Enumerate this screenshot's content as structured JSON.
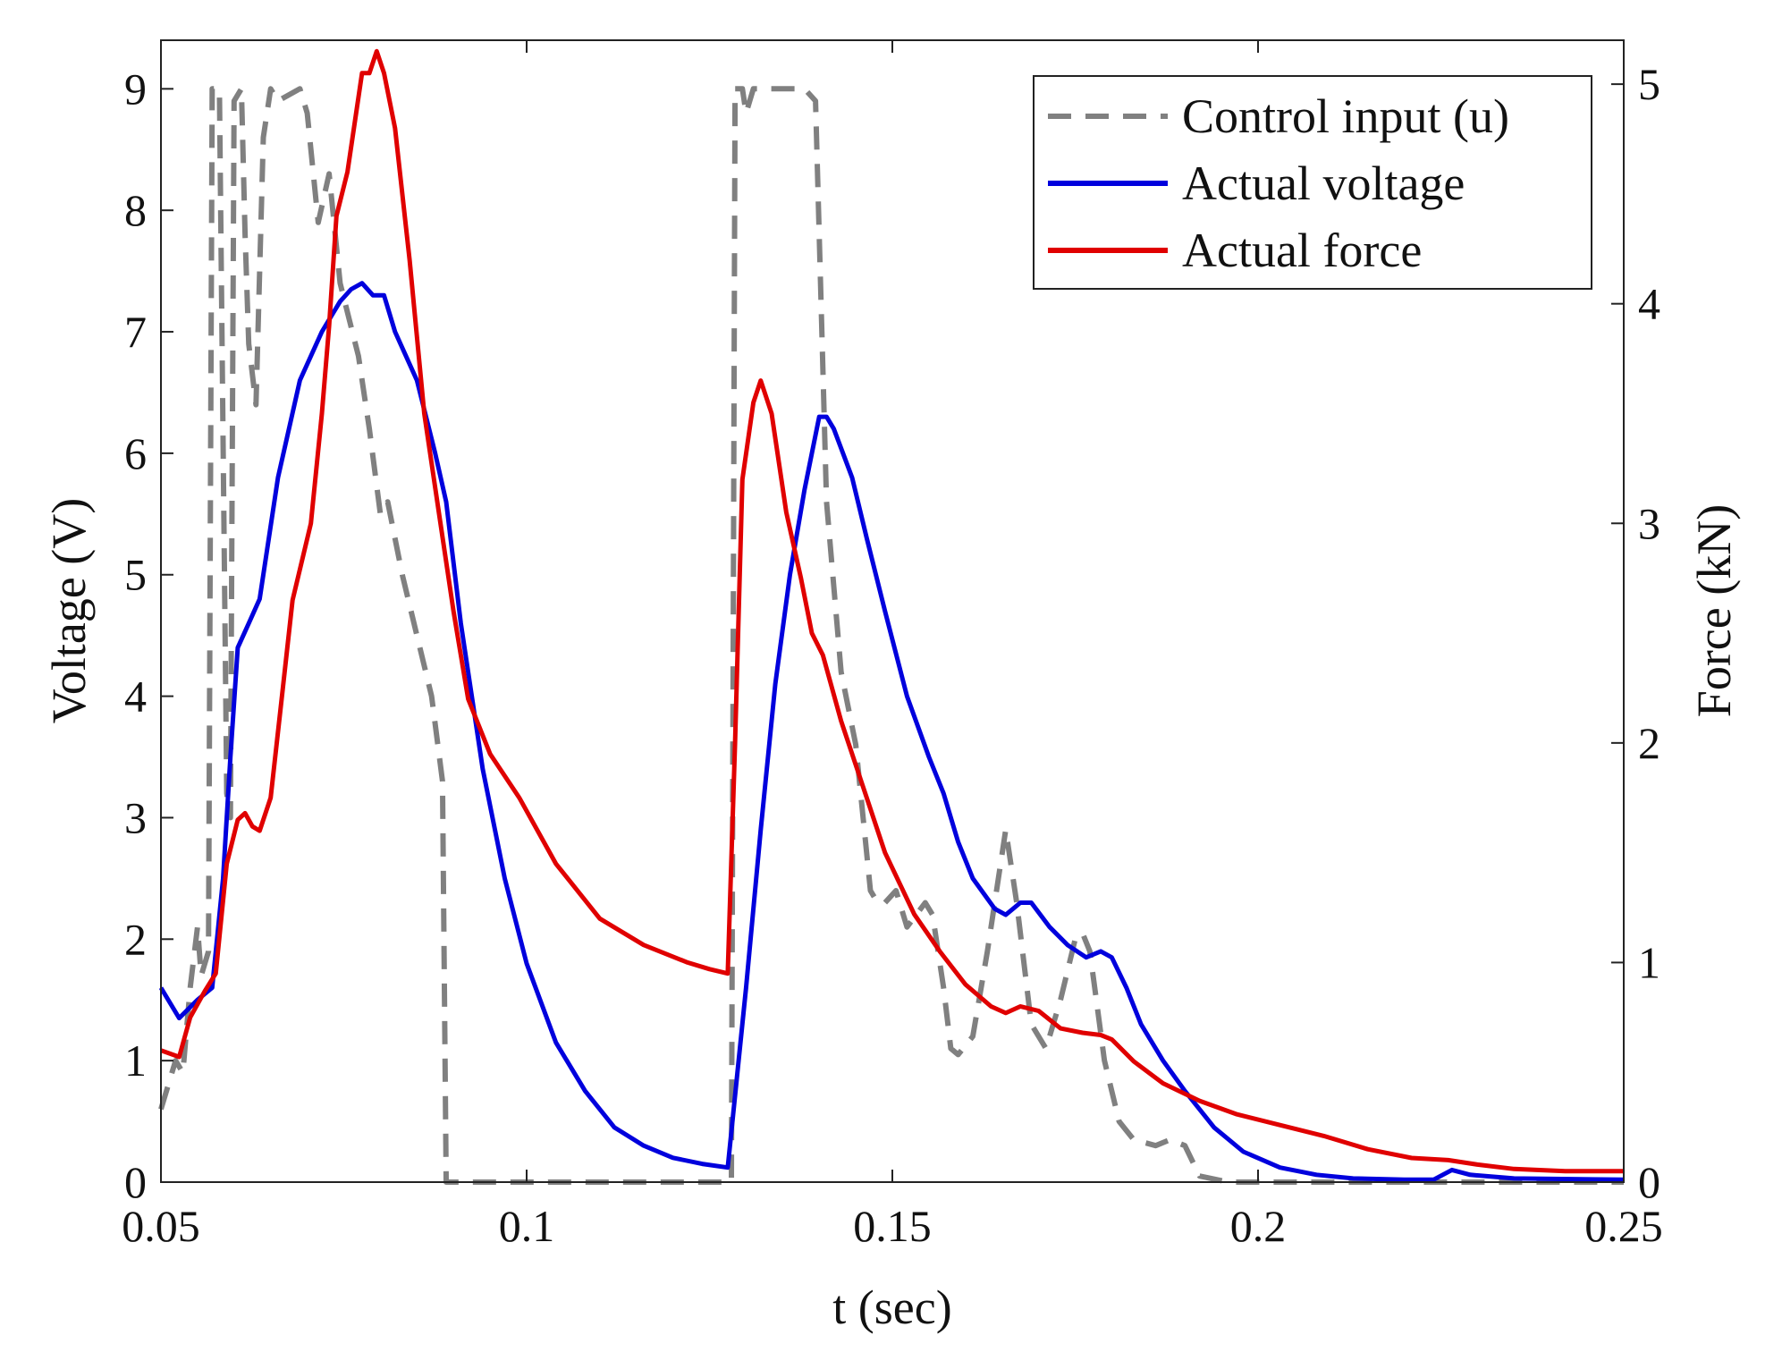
{
  "chart_data": {
    "type": "line",
    "xlabel": "t (sec)",
    "ylabel": "Voltage (V)",
    "y2label": "Force (kN)",
    "xlim": [
      0.05,
      0.25
    ],
    "ylim": [
      0,
      9.4
    ],
    "y2lim": [
      0,
      5.2
    ],
    "xticks": [
      0.05,
      0.1,
      0.15,
      0.2,
      0.25
    ],
    "xtick_labels": [
      "0.05",
      "0.1",
      "0.15",
      "0.2",
      "0.25"
    ],
    "yticks": [
      0,
      1,
      2,
      3,
      4,
      5,
      6,
      7,
      8,
      9
    ],
    "ytick_labels": [
      "0",
      "1",
      "2",
      "3",
      "4",
      "5",
      "6",
      "7",
      "8",
      "9"
    ],
    "y2ticks": [
      0,
      1,
      2,
      3,
      4,
      5
    ],
    "y2tick_labels": [
      "0",
      "1",
      "2",
      "3",
      "4",
      "5"
    ],
    "grid": false,
    "legend_position": "top-right",
    "series": [
      {
        "name": "Control input (u)",
        "axis": "left",
        "color": "#808080",
        "style": "dashed",
        "points": [
          [
            0.05,
            0.6
          ],
          [
            0.052,
            1.0
          ],
          [
            0.053,
            0.9
          ],
          [
            0.054,
            1.6
          ],
          [
            0.055,
            2.1
          ],
          [
            0.0555,
            1.7
          ],
          [
            0.0565,
            1.9
          ],
          [
            0.057,
            9.0
          ],
          [
            0.058,
            9.0
          ],
          [
            0.059,
            3.2
          ],
          [
            0.0595,
            3.0
          ],
          [
            0.06,
            8.9
          ],
          [
            0.061,
            9.0
          ],
          [
            0.0615,
            7.8
          ],
          [
            0.062,
            6.9
          ],
          [
            0.063,
            6.4
          ],
          [
            0.064,
            8.6
          ],
          [
            0.065,
            9.0
          ],
          [
            0.066,
            8.9
          ],
          [
            0.069,
            9.0
          ],
          [
            0.07,
            8.8
          ],
          [
            0.0715,
            7.9
          ],
          [
            0.073,
            8.3
          ],
          [
            0.0745,
            7.4
          ],
          [
            0.077,
            6.8
          ],
          [
            0.0785,
            6.2
          ],
          [
            0.08,
            5.5
          ],
          [
            0.081,
            5.6
          ],
          [
            0.083,
            5.0
          ],
          [
            0.085,
            4.5
          ],
          [
            0.087,
            4.0
          ],
          [
            0.0885,
            3.3
          ],
          [
            0.089,
            0.0
          ],
          [
            0.128,
            0.0
          ],
          [
            0.1285,
            9.0
          ],
          [
            0.1295,
            9.0
          ],
          [
            0.13,
            8.8
          ],
          [
            0.131,
            9.0
          ],
          [
            0.138,
            9.0
          ],
          [
            0.1395,
            8.9
          ],
          [
            0.141,
            5.6
          ],
          [
            0.143,
            4.2
          ],
          [
            0.145,
            3.6
          ],
          [
            0.146,
            3.0
          ],
          [
            0.147,
            2.4
          ],
          [
            0.148,
            2.3
          ],
          [
            0.149,
            2.3
          ],
          [
            0.1505,
            2.4
          ],
          [
            0.152,
            2.1
          ],
          [
            0.1545,
            2.3
          ],
          [
            0.1555,
            2.2
          ],
          [
            0.157,
            1.6
          ],
          [
            0.158,
            1.1
          ],
          [
            0.159,
            1.05
          ],
          [
            0.161,
            1.2
          ],
          [
            0.163,
            1.9
          ],
          [
            0.1655,
            2.9
          ],
          [
            0.167,
            2.3
          ],
          [
            0.169,
            1.3
          ],
          [
            0.171,
            1.1
          ],
          [
            0.173,
            1.5
          ],
          [
            0.175,
            2.0
          ],
          [
            0.176,
            2.05
          ],
          [
            0.177,
            1.9
          ],
          [
            0.179,
            1.0
          ],
          [
            0.181,
            0.5
          ],
          [
            0.183,
            0.35
          ],
          [
            0.186,
            0.3
          ],
          [
            0.188,
            0.35
          ],
          [
            0.19,
            0.3
          ],
          [
            0.192,
            0.05
          ],
          [
            0.196,
            0.0
          ],
          [
            0.25,
            0.0
          ]
        ]
      },
      {
        "name": "Actual voltage",
        "axis": "left",
        "color": "#0000DD",
        "style": "solid",
        "points": [
          [
            0.05,
            1.6
          ],
          [
            0.0525,
            1.35
          ],
          [
            0.055,
            1.5
          ],
          [
            0.057,
            1.6
          ],
          [
            0.0585,
            2.5
          ],
          [
            0.0595,
            3.5
          ],
          [
            0.0605,
            4.4
          ],
          [
            0.062,
            4.6
          ],
          [
            0.0635,
            4.8
          ],
          [
            0.066,
            5.8
          ],
          [
            0.069,
            6.6
          ],
          [
            0.072,
            7.0
          ],
          [
            0.0745,
            7.25
          ],
          [
            0.076,
            7.35
          ],
          [
            0.0775,
            7.4
          ],
          [
            0.079,
            7.3
          ],
          [
            0.0805,
            7.3
          ],
          [
            0.082,
            7.0
          ],
          [
            0.085,
            6.6
          ],
          [
            0.0875,
            6.0
          ],
          [
            0.089,
            5.6
          ],
          [
            0.091,
            4.6
          ],
          [
            0.094,
            3.4
          ],
          [
            0.097,
            2.5
          ],
          [
            0.1,
            1.8
          ],
          [
            0.104,
            1.15
          ],
          [
            0.108,
            0.75
          ],
          [
            0.112,
            0.45
          ],
          [
            0.116,
            0.3
          ],
          [
            0.12,
            0.2
          ],
          [
            0.124,
            0.15
          ],
          [
            0.1275,
            0.12
          ],
          [
            0.13,
            1.6
          ],
          [
            0.132,
            2.9
          ],
          [
            0.134,
            4.1
          ],
          [
            0.136,
            5.0
          ],
          [
            0.138,
            5.7
          ],
          [
            0.14,
            6.3
          ],
          [
            0.141,
            6.3
          ],
          [
            0.142,
            6.2
          ],
          [
            0.1445,
            5.8
          ],
          [
            0.1465,
            5.3
          ],
          [
            0.149,
            4.7
          ],
          [
            0.152,
            4.0
          ],
          [
            0.155,
            3.5
          ],
          [
            0.157,
            3.2
          ],
          [
            0.159,
            2.8
          ],
          [
            0.161,
            2.5
          ],
          [
            0.164,
            2.25
          ],
          [
            0.1655,
            2.2
          ],
          [
            0.1675,
            2.3
          ],
          [
            0.169,
            2.3
          ],
          [
            0.1715,
            2.1
          ],
          [
            0.174,
            1.95
          ],
          [
            0.1765,
            1.85
          ],
          [
            0.1785,
            1.9
          ],
          [
            0.18,
            1.85
          ],
          [
            0.182,
            1.6
          ],
          [
            0.184,
            1.3
          ],
          [
            0.187,
            1.0
          ],
          [
            0.19,
            0.75
          ],
          [
            0.194,
            0.45
          ],
          [
            0.198,
            0.25
          ],
          [
            0.203,
            0.12
          ],
          [
            0.208,
            0.06
          ],
          [
            0.213,
            0.03
          ],
          [
            0.22,
            0.02
          ],
          [
            0.224,
            0.02
          ],
          [
            0.2265,
            0.1
          ],
          [
            0.229,
            0.06
          ],
          [
            0.235,
            0.03
          ],
          [
            0.25,
            0.02
          ]
        ]
      },
      {
        "name": "Actual force",
        "axis": "right",
        "color": "#E00000",
        "style": "solid",
        "points": [
          [
            0.05,
            0.6
          ],
          [
            0.0525,
            0.57
          ],
          [
            0.054,
            0.75
          ],
          [
            0.056,
            0.87
          ],
          [
            0.0575,
            0.95
          ],
          [
            0.059,
            1.45
          ],
          [
            0.0605,
            1.65
          ],
          [
            0.0615,
            1.68
          ],
          [
            0.0625,
            1.62
          ],
          [
            0.0635,
            1.6
          ],
          [
            0.065,
            1.75
          ],
          [
            0.0665,
            2.2
          ],
          [
            0.068,
            2.65
          ],
          [
            0.0705,
            3.0
          ],
          [
            0.072,
            3.5
          ],
          [
            0.073,
            3.9
          ],
          [
            0.074,
            4.4
          ],
          [
            0.0755,
            4.6
          ],
          [
            0.0775,
            5.05
          ],
          [
            0.0785,
            5.05
          ],
          [
            0.079,
            5.1
          ],
          [
            0.0795,
            5.15
          ],
          [
            0.0805,
            5.05
          ],
          [
            0.082,
            4.8
          ],
          [
            0.084,
            4.2
          ],
          [
            0.086,
            3.5
          ],
          [
            0.088,
            3.05
          ],
          [
            0.09,
            2.6
          ],
          [
            0.092,
            2.2
          ],
          [
            0.095,
            1.95
          ],
          [
            0.099,
            1.75
          ],
          [
            0.104,
            1.45
          ],
          [
            0.11,
            1.2
          ],
          [
            0.116,
            1.08
          ],
          [
            0.122,
            1.0
          ],
          [
            0.125,
            0.97
          ],
          [
            0.1275,
            0.95
          ],
          [
            0.1285,
            2.0
          ],
          [
            0.1295,
            3.2
          ],
          [
            0.131,
            3.55
          ],
          [
            0.132,
            3.65
          ],
          [
            0.1335,
            3.5
          ],
          [
            0.1355,
            3.05
          ],
          [
            0.1375,
            2.75
          ],
          [
            0.139,
            2.5
          ],
          [
            0.1405,
            2.4
          ],
          [
            0.143,
            2.1
          ],
          [
            0.146,
            1.8
          ],
          [
            0.149,
            1.5
          ],
          [
            0.153,
            1.22
          ],
          [
            0.1565,
            1.05
          ],
          [
            0.16,
            0.9
          ],
          [
            0.1635,
            0.8
          ],
          [
            0.1655,
            0.77
          ],
          [
            0.1675,
            0.8
          ],
          [
            0.17,
            0.78
          ],
          [
            0.173,
            0.7
          ],
          [
            0.176,
            0.68
          ],
          [
            0.1785,
            0.67
          ],
          [
            0.18,
            0.65
          ],
          [
            0.183,
            0.55
          ],
          [
            0.187,
            0.45
          ],
          [
            0.192,
            0.37
          ],
          [
            0.197,
            0.31
          ],
          [
            0.203,
            0.26
          ],
          [
            0.209,
            0.21
          ],
          [
            0.215,
            0.15
          ],
          [
            0.221,
            0.11
          ],
          [
            0.226,
            0.1
          ],
          [
            0.23,
            0.08
          ],
          [
            0.235,
            0.06
          ],
          [
            0.242,
            0.05
          ],
          [
            0.25,
            0.05
          ]
        ]
      }
    ]
  }
}
